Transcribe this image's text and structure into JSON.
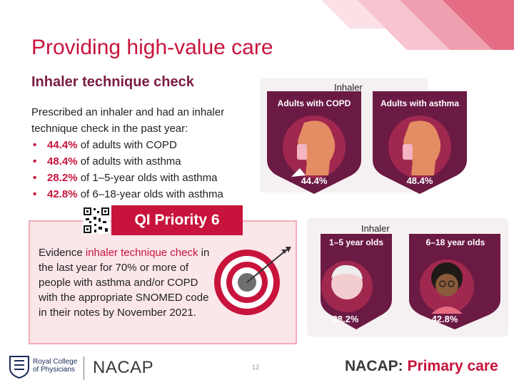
{
  "header": {
    "title": "Providing high-value care",
    "subtitle": "Inhaler technique check"
  },
  "intro": {
    "lead": "Prescribed an inhaler and had an inhaler technique check in the past year:",
    "items": [
      {
        "pct": "44.4%",
        "text": "of adults with COPD"
      },
      {
        "pct": "48.4%",
        "text": "of adults with asthma"
      },
      {
        "pct": "28.2%",
        "text": "of 1–5-year olds with asthma"
      },
      {
        "pct": "42.8%",
        "text": "of 6–18-year olds with asthma"
      }
    ]
  },
  "adult_graphic": {
    "image_label": "Inhaler",
    "left_title": "Adults with COPD",
    "left_pct": "44.4%",
    "right_title": "Adults with asthma",
    "right_pct": "48.4%"
  },
  "child_graphic": {
    "image_label": "Inhaler",
    "left_title": "1–5 year olds",
    "left_pct": "28.2%",
    "right_title": "6–18 year olds",
    "right_pct": "42.8%"
  },
  "qi": {
    "banner": "QI Priority 6",
    "text_pre": "Evidence ",
    "text_highlight": "inhaler technique check",
    "text_post": " in the last year for 70% or more of people with asthma and/or COPD with the appropriate SNOMED code in their notes by November 2021."
  },
  "footer": {
    "rcp_line1": "Royal College",
    "rcp_line2": "of Physicians",
    "nacap": "NACAP",
    "page_number": "12",
    "brand_a": "NACAP:",
    "brand_b": " Primary care"
  },
  "colors": {
    "accent": "#c8143c",
    "dark": "#6b1a44",
    "pink_bg": "#fbe6ea"
  }
}
